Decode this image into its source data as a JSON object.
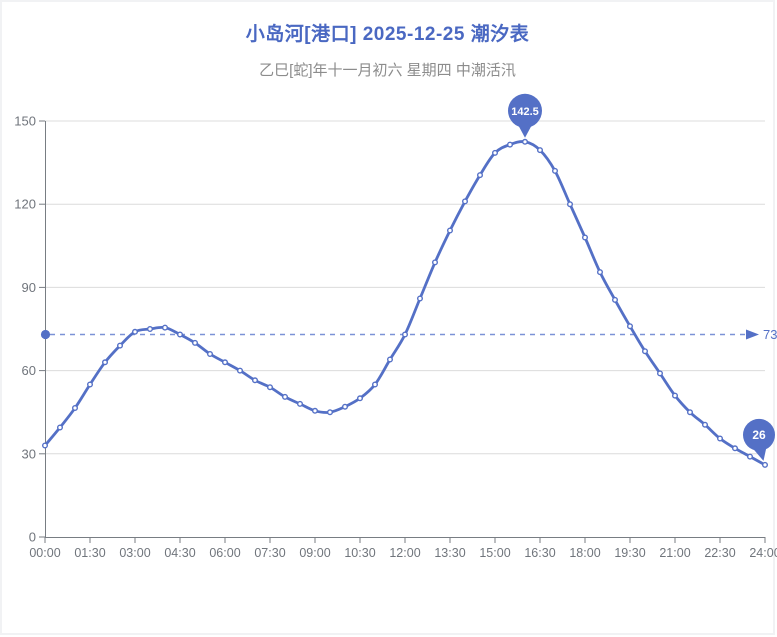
{
  "header": {
    "title": "小岛河[港口] 2025-12-25 潮汐表",
    "subtitle": "乙巳[蛇]年十一月初六 星期四 中潮活汛",
    "title_color": "#4a68c2",
    "subtitle_color": "#8c8c8c"
  },
  "chart_data": {
    "type": "line",
    "smooth": true,
    "title": "小岛河[港口] 2025-12-25 潮汐表",
    "subtitle": "乙巳[蛇]年十一月初六 星期四 中潮活汛",
    "xlabel": "",
    "ylabel": "",
    "x": [
      "00:00",
      "00:30",
      "01:00",
      "01:30",
      "02:00",
      "02:30",
      "03:00",
      "03:30",
      "04:00",
      "04:30",
      "05:00",
      "05:30",
      "06:00",
      "06:30",
      "07:00",
      "07:30",
      "08:00",
      "08:30",
      "09:00",
      "09:30",
      "10:00",
      "10:30",
      "11:00",
      "11:30",
      "12:00",
      "12:30",
      "13:00",
      "13:30",
      "14:00",
      "14:30",
      "15:00",
      "15:30",
      "16:00",
      "16:30",
      "17:00",
      "17:30",
      "18:00",
      "18:30",
      "19:00",
      "19:30",
      "20:00",
      "20:30",
      "21:00",
      "21:30",
      "22:00",
      "22:30",
      "23:00",
      "23:30",
      "24:00"
    ],
    "values": [
      33,
      39.5,
      46.5,
      55,
      63,
      69,
      74,
      75,
      75.5,
      73,
      70,
      66,
      63,
      60,
      56.5,
      54,
      50.5,
      48,
      45.5,
      45,
      47,
      50,
      55,
      64,
      73,
      86,
      99,
      110.5,
      121,
      130.5,
      138.5,
      141.5,
      142.5,
      139.5,
      132,
      120,
      108,
      95.5,
      85.5,
      76,
      67,
      59,
      51,
      45,
      40.5,
      35.5,
      32,
      29,
      26
    ],
    "x_tick_labels": [
      "00:00",
      "01:30",
      "03:00",
      "04:30",
      "06:00",
      "07:30",
      "09:00",
      "10:30",
      "12:00",
      "13:30",
      "15:00",
      "16:30",
      "18:00",
      "19:30",
      "21:00",
      "22:30",
      "24:00"
    ],
    "y_ticks": [
      0,
      30,
      60,
      90,
      120,
      150
    ],
    "ylim": [
      0,
      150
    ],
    "grid_on": true,
    "legend": "none",
    "max_marker": {
      "label": "142.5",
      "time": "16:00",
      "value": 142.5
    },
    "min_marker": {
      "label": "26",
      "time": "24:00",
      "value": 26
    },
    "average_line": {
      "value": 73,
      "label": "73",
      "style": "dashed",
      "arrow": "right",
      "note": "label partially clipped at right edge"
    },
    "series_color": "#5470c6",
    "marker_fill": "#ffffff",
    "pin_color": "#5470c6",
    "pin_label_color": "#ffffff",
    "markline_color": "#5b78cc",
    "markline_label_color": "#5470c6",
    "grid_color": "#dcdcdc",
    "axis_color": "#787d83",
    "axis_label_color": "#70757c"
  }
}
